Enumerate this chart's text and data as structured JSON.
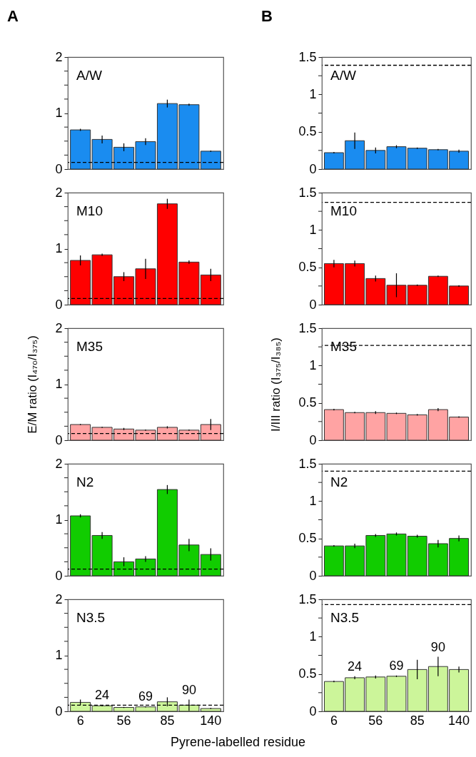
{
  "chart_data": [
    {
      "type": "bar",
      "title": "A",
      "categories": [
        "6",
        null,
        "56",
        null,
        "85",
        null,
        "140"
      ],
      "ylim": [
        0,
        2
      ],
      "yticks": [
        0,
        {
          "value": 0.25,
          "label": null
        },
        {
          "value": 0.5,
          "label": null
        },
        {
          "value": 0.75,
          "label": null
        },
        1,
        {
          "value": 1.25,
          "label": null
        },
        {
          "value": 1.5,
          "label": null
        },
        {
          "value": 1.75,
          "label": null
        },
        2
      ],
      "tick_labels": "y",
      "annotations": [
        "A/W"
      ],
      "series": [
        {
          "color": "#1a8cf0",
          "values": [
            0.7,
            0.53,
            0.39,
            0.49,
            1.17,
            1.15,
            0.32
          ],
          "errors": [
            0.02,
            0.07,
            0.07,
            0.06,
            0.07,
            0.02,
            0.01
          ]
        }
      ],
      "ref_lines": [
        {
          "axis": "y",
          "value": 0.12,
          "line_style": "dashed"
        }
      ]
    },
    {
      "type": "bar",
      "title": "B",
      "categories": [
        "6",
        null,
        "56",
        null,
        "85",
        null,
        "140"
      ],
      "ylim": [
        0,
        1.5
      ],
      "yticks": [
        0,
        {
          "value": 0.25,
          "label": null
        },
        0.5,
        {
          "value": 0.75,
          "label": null
        },
        1,
        {
          "value": 1.25,
          "label": null
        },
        1.5
      ],
      "tick_labels": "y",
      "annotations": [
        "A/W"
      ],
      "series": [
        {
          "color": "#1a8cf0",
          "values": [
            0.22,
            0.38,
            0.25,
            0.3,
            0.28,
            0.26,
            0.24
          ],
          "errors": [
            0.01,
            0.11,
            0.04,
            0.02,
            0.01,
            0.01,
            0.02
          ]
        }
      ],
      "ref_lines": [
        {
          "axis": "y",
          "value": 1.39,
          "line_style": "dashed"
        }
      ]
    },
    {
      "type": "bar",
      "categories": [
        "6",
        null,
        "56",
        null,
        "85",
        null,
        "140"
      ],
      "ylim": [
        0,
        2
      ],
      "yticks": [
        0,
        {
          "value": 0.25,
          "label": null
        },
        {
          "value": 0.5,
          "label": null
        },
        {
          "value": 0.75,
          "label": null
        },
        1,
        {
          "value": 1.25,
          "label": null
        },
        {
          "value": 1.5,
          "label": null
        },
        {
          "value": 1.75,
          "label": null
        },
        2
      ],
      "tick_labels": "y",
      "annotations": [
        "M10"
      ],
      "series": [
        {
          "color": "#ff0000",
          "values": [
            0.79,
            0.89,
            0.5,
            0.64,
            1.8,
            0.76,
            0.53
          ],
          "errors": [
            0.09,
            0.02,
            0.08,
            0.18,
            0.09,
            0.03,
            0.11
          ]
        }
      ],
      "ref_lines": [
        {
          "axis": "y",
          "value": 0.11,
          "line_style": "dashed"
        }
      ]
    },
    {
      "type": "bar",
      "categories": [
        "6",
        null,
        "56",
        null,
        "85",
        null,
        "140"
      ],
      "ylim": [
        0,
        1.5
      ],
      "yticks": [
        0,
        {
          "value": 0.25,
          "label": null
        },
        0.5,
        {
          "value": 0.75,
          "label": null
        },
        1,
        {
          "value": 1.25,
          "label": null
        },
        1.5
      ],
      "tick_labels": "y",
      "annotations": [
        "M10"
      ],
      "series": [
        {
          "color": "#ff0000",
          "values": [
            0.55,
            0.55,
            0.35,
            0.26,
            0.26,
            0.38,
            0.25
          ],
          "errors": [
            0.05,
            0.04,
            0.04,
            0.16,
            0.01,
            0.01,
            0.01
          ]
        }
      ],
      "ref_lines": [
        {
          "axis": "y",
          "value": 1.37,
          "line_style": "dashed"
        }
      ]
    },
    {
      "type": "bar",
      "ylabel": "E/M ratio (I₄₇₀/I₃₇₅)",
      "categories": [
        "6",
        null,
        "56",
        null,
        "85",
        null,
        "140"
      ],
      "ylim": [
        0,
        2
      ],
      "yticks": [
        0,
        {
          "value": 0.25,
          "label": null
        },
        {
          "value": 0.5,
          "label": null
        },
        {
          "value": 0.75,
          "label": null
        },
        1,
        {
          "value": 1.25,
          "label": null
        },
        {
          "value": 1.5,
          "label": null
        },
        {
          "value": 1.75,
          "label": null
        },
        2
      ],
      "tick_labels": "y",
      "annotations": [
        "M35"
      ],
      "series": [
        {
          "color": "#ffa3a3",
          "values": [
            0.28,
            0.23,
            0.2,
            0.18,
            0.23,
            0.18,
            0.28
          ],
          "errors": [
            0.01,
            0.01,
            0.02,
            0.01,
            0.02,
            0.01,
            0.1
          ]
        }
      ],
      "ref_lines": [
        {
          "axis": "y",
          "value": 0.12,
          "line_style": "dashed"
        }
      ]
    },
    {
      "type": "bar",
      "ylabel": "I/III ratio (I₃₇₅/I₃₈₅)",
      "categories": [
        "6",
        null,
        "56",
        null,
        "85",
        null,
        "140"
      ],
      "ylim": [
        0,
        1.5
      ],
      "yticks": [
        0,
        {
          "value": 0.25,
          "label": null
        },
        0.5,
        {
          "value": 0.75,
          "label": null
        },
        1,
        {
          "value": 1.25,
          "label": null
        },
        1.5
      ],
      "tick_labels": "y",
      "annotations": [
        "M35"
      ],
      "series": [
        {
          "color": "#ffa3a3",
          "values": [
            0.41,
            0.37,
            0.37,
            0.36,
            0.34,
            0.41,
            0.31
          ],
          "errors": [
            0.01,
            0.01,
            0.02,
            0.01,
            0.01,
            0.02,
            0.01
          ]
        }
      ],
      "ref_lines": [
        {
          "axis": "y",
          "value": 1.27,
          "line_style": "dashed"
        }
      ]
    },
    {
      "type": "bar",
      "categories": [
        "6",
        null,
        "56",
        null,
        "85",
        null,
        "140"
      ],
      "ylim": [
        0,
        2
      ],
      "yticks": [
        0,
        {
          "value": 0.25,
          "label": null
        },
        {
          "value": 0.5,
          "label": null
        },
        {
          "value": 0.75,
          "label": null
        },
        1,
        {
          "value": 1.25,
          "label": null
        },
        {
          "value": 1.5,
          "label": null
        },
        {
          "value": 1.75,
          "label": null
        },
        2
      ],
      "tick_labels": "y",
      "annotations": [
        "N2"
      ],
      "series": [
        {
          "color": "#11cc00",
          "values": [
            1.07,
            0.72,
            0.25,
            0.3,
            1.54,
            0.55,
            0.38
          ],
          "errors": [
            0.03,
            0.06,
            0.08,
            0.05,
            0.08,
            0.11,
            0.11
          ]
        }
      ],
      "ref_lines": [
        {
          "axis": "y",
          "value": 0.12,
          "line_style": "dashed"
        }
      ]
    },
    {
      "type": "bar",
      "categories": [
        "6",
        null,
        "56",
        null,
        "85",
        null,
        "140"
      ],
      "ylim": [
        0,
        1.5
      ],
      "yticks": [
        0,
        {
          "value": 0.25,
          "label": null
        },
        0.5,
        {
          "value": 0.75,
          "label": null
        },
        1,
        {
          "value": 1.25,
          "label": null
        },
        1.5
      ],
      "tick_labels": "y",
      "annotations": [
        "N2"
      ],
      "series": [
        {
          "color": "#11cc00",
          "values": [
            0.4,
            0.4,
            0.54,
            0.56,
            0.53,
            0.43,
            0.5
          ],
          "errors": [
            0.01,
            0.03,
            0.02,
            0.02,
            0.02,
            0.05,
            0.04
          ]
        }
      ],
      "ref_lines": [
        {
          "axis": "y",
          "value": 1.4,
          "line_style": "dashed"
        }
      ]
    },
    {
      "type": "bar",
      "xlabel": "Pyrene-labelled residue",
      "categories": [
        "6",
        null,
        "56",
        null,
        "85",
        null,
        "140"
      ],
      "ylim": [
        0,
        2
      ],
      "yticks": [
        0,
        {
          "value": 0.25,
          "label": null
        },
        {
          "value": 0.5,
          "label": null
        },
        {
          "value": 0.75,
          "label": null
        },
        1,
        {
          "value": 1.25,
          "label": null
        },
        {
          "value": 1.5,
          "label": null
        },
        {
          "value": 1.75,
          "label": null
        },
        2
      ],
      "annotations": [
        "N3.5",
        "24",
        "69",
        "90"
      ],
      "series": [
        {
          "color": "#ccf59a",
          "values": [
            0.16,
            0.1,
            0.07,
            0.08,
            0.17,
            0.11,
            0.05
          ],
          "errors": [
            0.05,
            0.01,
            0.01,
            0.01,
            0.08,
            0.1,
            0.01
          ]
        }
      ],
      "ref_lines": [
        {
          "axis": "y",
          "value": 0.11,
          "line_style": "dashed"
        }
      ]
    },
    {
      "type": "bar",
      "categories": [
        "6",
        null,
        "56",
        null,
        "85",
        null,
        "140"
      ],
      "ylim": [
        0,
        1.5
      ],
      "yticks": [
        0,
        {
          "value": 0.25,
          "label": null
        },
        0.5,
        {
          "value": 0.75,
          "label": null
        },
        1,
        {
          "value": 1.25,
          "label": null
        },
        1.5
      ],
      "annotations": [
        "N3.5",
        "24",
        "69",
        "90"
      ],
      "series": [
        {
          "color": "#ccf59a",
          "values": [
            0.4,
            0.45,
            0.46,
            0.47,
            0.56,
            0.6,
            0.56
          ],
          "errors": [
            0.01,
            0.02,
            0.02,
            0.01,
            0.13,
            0.13,
            0.04
          ]
        }
      ],
      "ref_lines": [
        {
          "axis": "y",
          "value": 1.43,
          "line_style": "dashed"
        }
      ]
    }
  ]
}
